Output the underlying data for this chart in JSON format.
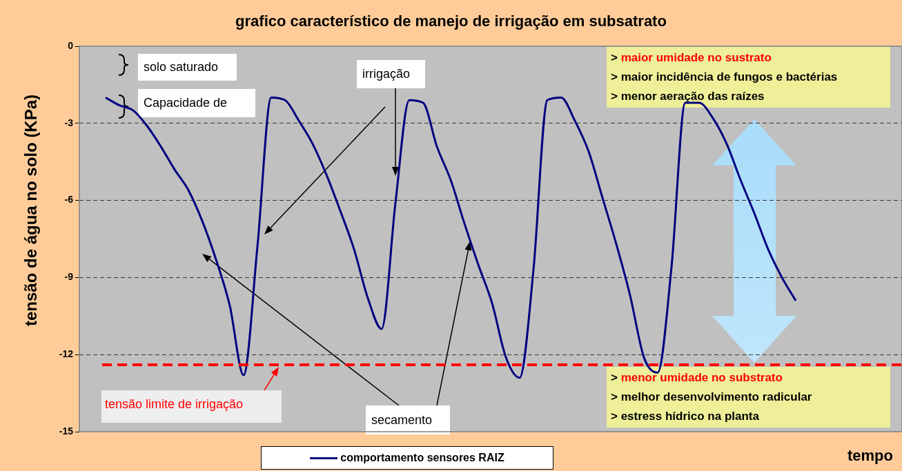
{
  "chart_data": {
    "type": "line",
    "title": "grafico característico de manejo de irrigação em subsatrato",
    "xlabel": "tempo",
    "ylabel": "tensão de água no solo (KPa)",
    "categories": [
      null,
      null,
      null,
      null,
      null,
      null,
      null,
      null,
      null,
      null,
      null,
      null,
      null,
      null,
      null,
      null,
      null,
      null,
      null,
      null,
      null,
      null,
      null,
      null,
      null,
      null,
      null,
      null,
      null,
      null,
      null,
      null,
      null,
      null,
      null,
      null,
      null,
      null,
      null,
      null,
      null,
      null,
      null,
      null,
      null,
      null,
      null,
      null,
      null,
      null,
      null
    ],
    "series": [
      {
        "name": "comportamento sensores RAIZ",
        "color": "#000080",
        "values": [
          -2.0,
          -2.3,
          -2.5,
          -3.1,
          -3.9,
          -4.8,
          -5.6,
          -6.8,
          -8.3,
          -10.1,
          -12.8,
          -7.8,
          -2.0,
          -2.1,
          -2.9,
          -3.8,
          -5.0,
          -6.4,
          -7.9,
          -9.8,
          -11.0,
          -6.1,
          -2.1,
          -2.2,
          -3.9,
          -5.2,
          -6.9,
          -8.5,
          -10.0,
          -12.1,
          -12.9,
          -8.7,
          -2.1,
          -2.0,
          -2.9,
          -4.1,
          -5.9,
          -7.7,
          -9.7,
          -12.1,
          -12.7,
          -8.6,
          -2.2,
          -2.2,
          -2.8,
          -3.8,
          -5.2,
          -6.5,
          -7.9,
          -9.0,
          -9.9
        ]
      }
    ],
    "ylim": [
      -15,
      0
    ],
    "yticks": [
      -15,
      -12,
      -9,
      -6,
      -3,
      0
    ],
    "grid": "y",
    "legend": "bottom",
    "tick_labels": "y",
    "marker": "none",
    "line_style": "solid",
    "ref_lines": [
      {
        "axis": "y",
        "value": -12.4,
        "label": "tensão limite de irrigação",
        "color": "#ff0000",
        "line_style": "dashed"
      }
    ],
    "annotations": [
      "solo saturado",
      "Capacidade de",
      "irrigação",
      "secamento",
      "> maior umidade no sustrato",
      "> maior incidência de fungos e bactérias",
      "> menor aeração das raízes",
      "> menor umidade no substrato",
      "> melhor desenvolvimento radicular",
      "> estress hídrico na planta"
    ]
  }
}
